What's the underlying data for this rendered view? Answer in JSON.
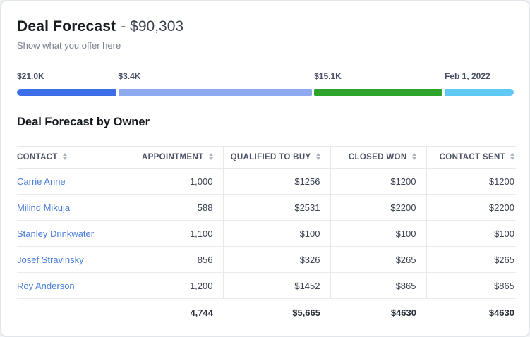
{
  "header": {
    "title": "Deal Forecast",
    "amount": "- $90,303",
    "subtitle": "Show what you offer here"
  },
  "forecast_bar": {
    "segments": [
      {
        "label": "$21.0K",
        "color": "#3c6fe7",
        "width_pct": 20.0,
        "bar_css": "width:20%;background:#3c6fe7",
        "label_css": "left:0%"
      },
      {
        "label": "$3.4K",
        "color": "#8fa9f0",
        "width_pct": 39.1,
        "bar_css": "width:39.1%;background:#8fa9f0",
        "label_css": "left:20.4%"
      },
      {
        "label": "$15.1K",
        "color": "#2ea42c",
        "width_pct": 25.8,
        "bar_css": "width:25.8%;background:#2ea42c",
        "label_css": "left:59.9%"
      },
      {
        "label": "Feb 1, 2022",
        "color": "#5fc8f3",
        "width_pct": 13.9,
        "bar_css": "width:13.9%;background:#5fc8f3",
        "label_css": "left:86.2%"
      }
    ]
  },
  "table": {
    "title": "Deal Forecast by Owner",
    "headers": [
      {
        "label": "CONTACT"
      },
      {
        "label": "APPOINTMENT"
      },
      {
        "label": "QUALIFIED TO BUY"
      },
      {
        "label": "CLOSED WON"
      },
      {
        "label": "CONTACT SENT"
      }
    ],
    "rows": [
      {
        "name": "Carrie Anne",
        "values": [
          "1,000",
          "$1256",
          "$1200",
          "$1200"
        ]
      },
      {
        "name": "Milind Mikuja",
        "values": [
          "588",
          "$2531",
          "$2200",
          "$2200"
        ]
      },
      {
        "name": "Stanley Drinkwater",
        "values": [
          "1,100",
          "$100",
          "$100",
          "$100"
        ]
      },
      {
        "name": "Josef Stravinsky",
        "values": [
          "856",
          "$326",
          "$265",
          "$265"
        ]
      },
      {
        "name": "Roy Anderson",
        "values": [
          "1,200",
          "$1452",
          "$865",
          "$865"
        ]
      }
    ],
    "totals": [
      "4,744",
      "$5,665",
      "$4630",
      "$4630"
    ]
  }
}
